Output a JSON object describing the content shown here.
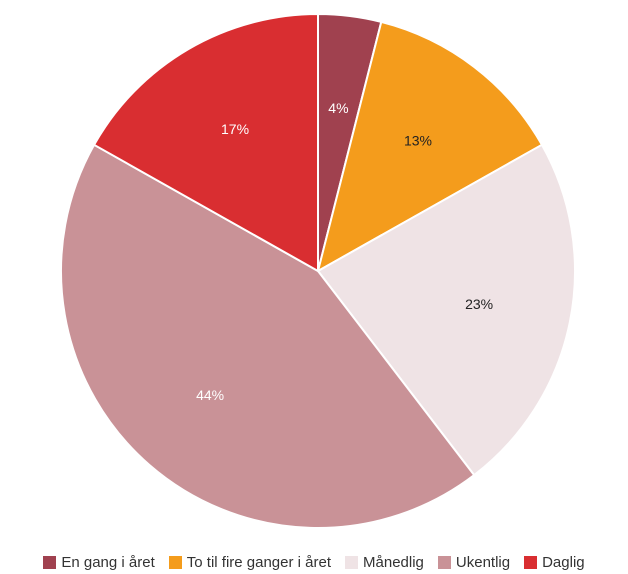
{
  "chart_data": {
    "type": "pie",
    "slices": [
      {
        "name": "En gang i året",
        "value": 4,
        "label": "4%",
        "color": "#a0414f",
        "label_color": "#ffffff"
      },
      {
        "name": "To til fire ganger i året",
        "value": 13,
        "label": "13%",
        "color": "#f49c1c",
        "label_color": "#222222"
      },
      {
        "name": "Månedlig",
        "value": 23,
        "label": "23%",
        "color": "#efe3e5",
        "label_color": "#222222"
      },
      {
        "name": "Ukentlig",
        "value": 44,
        "label": "44%",
        "color": "#c99297",
        "label_color": "#ffffff"
      },
      {
        "name": "Daglig",
        "value": 17,
        "label": "17%",
        "color": "#d92e31",
        "label_color": "#ffffff"
      }
    ],
    "start_angle": "top",
    "direction": "clockwise",
    "legend_position": "bottom-center"
  }
}
